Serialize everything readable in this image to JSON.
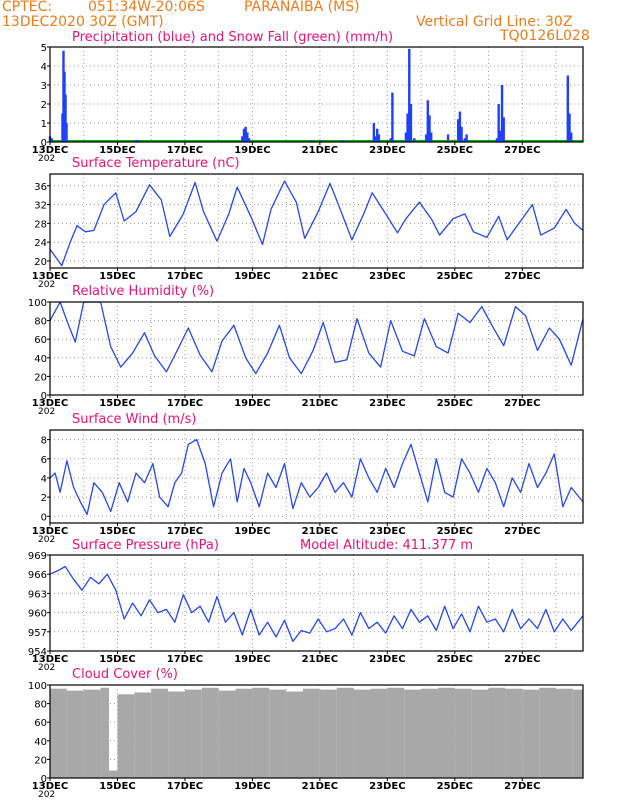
{
  "header": {
    "source": "CPTEC:",
    "coords": "051:34W-20:06S",
    "location": "PARANAIBA (MS)",
    "run": "13DEC2020 30Z (GMT)",
    "grid_note": "Vertical Grid Line: 30Z",
    "code": "TQ0126L028"
  },
  "x_axis": {
    "labels": [
      "13DEC",
      "15DEC",
      "17DEC",
      "19DEC",
      "21DEC",
      "23DEC",
      "25DEC",
      "27DEC"
    ],
    "fragment": "202"
  },
  "colors": {
    "precip": "#2040ff",
    "snow": "#00b000",
    "line": "#2848e8",
    "cloud": "#a8a8a8",
    "title": "#e0157a",
    "header": "#e87d1e"
  },
  "chart_data": [
    {
      "type": "bar",
      "title": "Precipitation (blue) and Snow Fall (green) (mm/h)",
      "ylim": [
        0,
        5
      ],
      "yticks": [
        0,
        1,
        2,
        3,
        4,
        5
      ],
      "x_days": [
        0.0,
        0.05,
        0.37,
        0.4,
        0.43,
        0.46,
        0.49,
        2.55,
        2.6,
        5.7,
        5.75,
        5.8,
        5.85,
        5.9,
        7.75,
        8.05,
        8.65,
        9.6,
        9.65,
        9.7,
        9.75,
        10.1,
        10.15,
        10.55,
        10.6,
        10.65,
        10.7,
        10.8,
        11.15,
        11.2,
        11.25,
        11.3,
        11.8,
        12.1,
        12.15,
        12.2,
        12.3,
        12.35,
        13.25,
        13.3,
        13.35,
        13.4,
        13.45,
        15.35,
        15.4,
        15.45
      ],
      "values": [
        0.3,
        0.2,
        1.5,
        4.8,
        3.7,
        2.5,
        1.0,
        0.1,
        0.1,
        0.3,
        0.7,
        0.8,
        0.5,
        0.2,
        0.1,
        0.1,
        0.1,
        1.0,
        0.3,
        0.7,
        0.4,
        0.2,
        2.6,
        0.5,
        1.5,
        4.9,
        2.0,
        0.2,
        0.4,
        2.2,
        1.4,
        0.5,
        0.4,
        1.2,
        1.6,
        0.8,
        0.2,
        0.4,
        0.2,
        2.0,
        0.6,
        3.0,
        1.3,
        3.5,
        1.5,
        0.5
      ]
    },
    {
      "type": "line",
      "title": "Surface Temperature (nC)",
      "ylim": [
        18.5,
        38.5
      ],
      "yticks": [
        20,
        24,
        28,
        32,
        36
      ],
      "x_days": [
        0.0,
        0.35,
        0.6,
        0.8,
        1.05,
        1.3,
        1.6,
        1.95,
        2.2,
        2.55,
        2.95,
        3.3,
        3.55,
        3.95,
        4.3,
        4.55,
        4.95,
        5.3,
        5.55,
        5.95,
        6.3,
        6.55,
        6.95,
        7.3,
        7.55,
        7.95,
        8.3,
        8.55,
        8.95,
        9.3,
        9.55,
        9.95,
        10.3,
        10.55,
        10.95,
        11.3,
        11.55,
        11.95,
        12.3,
        12.55,
        12.95,
        13.3,
        13.55,
        13.95,
        14.3,
        14.55,
        14.95,
        15.3,
        15.55,
        15.8
      ],
      "values": [
        22.5,
        19,
        24,
        27.5,
        26.2,
        26.5,
        32,
        34.5,
        28.5,
        30.5,
        36.2,
        33,
        25.2,
        30,
        36.7,
        30.5,
        24.2,
        30,
        35.7,
        29.5,
        23.5,
        31,
        37,
        32.5,
        24.8,
        30.5,
        36.5,
        32,
        24.5,
        30,
        34.5,
        30,
        26,
        29,
        32.5,
        29,
        25.5,
        29,
        30,
        26.2,
        25,
        29.5,
        24.5,
        28.5,
        32,
        25.5,
        27,
        31,
        28,
        26.5
      ]
    },
    {
      "type": "line",
      "title": "Relative Humidity (%)",
      "ylim": [
        0,
        100
      ],
      "yticks": [
        0,
        20,
        40,
        60,
        80,
        100
      ],
      "x_days": [
        0.0,
        0.3,
        0.55,
        0.75,
        1.0,
        1.2,
        1.5,
        1.8,
        2.1,
        2.45,
        2.8,
        3.1,
        3.45,
        3.8,
        4.1,
        4.45,
        4.8,
        5.1,
        5.45,
        5.8,
        6.1,
        6.45,
        6.8,
        7.1,
        7.45,
        7.8,
        8.1,
        8.45,
        8.8,
        9.1,
        9.45,
        9.8,
        10.1,
        10.45,
        10.8,
        11.1,
        11.45,
        11.8,
        12.1,
        12.45,
        12.8,
        13.1,
        13.45,
        13.8,
        14.1,
        14.45,
        14.8,
        15.1,
        15.45,
        15.8
      ],
      "values": [
        80,
        100,
        75,
        57,
        100,
        100,
        100,
        52,
        30,
        45,
        67,
        42,
        25,
        50,
        72,
        43,
        25,
        58,
        75,
        40,
        23,
        45,
        75,
        40,
        23,
        48,
        78,
        35,
        38,
        82,
        45,
        30,
        80,
        47,
        42,
        82,
        52,
        45,
        88,
        78,
        95,
        75,
        53,
        95,
        85,
        48,
        72,
        60,
        32,
        82
      ]
    },
    {
      "type": "line",
      "title": "Surface Wind (m/s)",
      "ylim": [
        -0.7,
        9
      ],
      "yticks": [
        0,
        2,
        4,
        6,
        8
      ],
      "x_days": [
        0.0,
        0.15,
        0.3,
        0.5,
        0.7,
        0.9,
        1.1,
        1.3,
        1.55,
        1.8,
        2.05,
        2.3,
        2.55,
        2.8,
        3.05,
        3.25,
        3.5,
        3.7,
        3.9,
        4.1,
        4.35,
        4.6,
        4.85,
        5.1,
        5.35,
        5.55,
        5.75,
        5.95,
        6.2,
        6.45,
        6.7,
        6.95,
        7.2,
        7.45,
        7.7,
        7.95,
        8.2,
        8.45,
        8.7,
        8.95,
        9.2,
        9.45,
        9.7,
        9.95,
        10.2,
        10.45,
        10.7,
        10.95,
        11.2,
        11.45,
        11.7,
        11.95,
        12.2,
        12.45,
        12.7,
        12.95,
        13.2,
        13.45,
        13.7,
        13.95,
        14.2,
        14.45,
        14.7,
        14.95,
        15.2,
        15.45,
        15.8
      ],
      "values": [
        4,
        4.5,
        2.5,
        5.8,
        3,
        1.5,
        0.2,
        3.5,
        2.5,
        0.5,
        3.5,
        1.5,
        4.5,
        3.5,
        5.5,
        2,
        1,
        3.5,
        4.5,
        7.5,
        8,
        5.5,
        1,
        4.5,
        6,
        1.5,
        5,
        3.5,
        1,
        4.5,
        3,
        5.5,
        0.8,
        3.5,
        2,
        3,
        4.5,
        2.5,
        3.5,
        2,
        6,
        4,
        2.5,
        5,
        3,
        5.5,
        7.5,
        4.5,
        1.5,
        6,
        2.5,
        2,
        6,
        4.5,
        2.5,
        5,
        3.5,
        1,
        4,
        2.5,
        5.5,
        3,
        4.5,
        6.5,
        1,
        3,
        1.5
      ]
    },
    {
      "type": "line",
      "title": "Surface Pressure (hPa)",
      "annotation": "Model Altitude: 411.377 m",
      "ylim": [
        954,
        969
      ],
      "yticks": [
        954,
        957,
        960,
        963,
        966,
        969
      ],
      "x_days": [
        0.0,
        0.25,
        0.45,
        0.7,
        0.95,
        1.2,
        1.45,
        1.7,
        1.95,
        2.2,
        2.45,
        2.7,
        2.95,
        3.2,
        3.45,
        3.7,
        3.95,
        4.2,
        4.45,
        4.7,
        4.95,
        5.2,
        5.45,
        5.7,
        5.95,
        6.2,
        6.45,
        6.7,
        6.95,
        7.2,
        7.45,
        7.7,
        7.95,
        8.2,
        8.45,
        8.7,
        8.95,
        9.2,
        9.45,
        9.7,
        9.95,
        10.2,
        10.45,
        10.7,
        10.95,
        11.2,
        11.45,
        11.7,
        11.95,
        12.2,
        12.45,
        12.7,
        12.95,
        13.2,
        13.45,
        13.7,
        13.95,
        14.2,
        14.45,
        14.7,
        14.95,
        15.2,
        15.45,
        15.8
      ],
      "values": [
        966,
        966.6,
        967.2,
        965.2,
        963.5,
        965.5,
        964.5,
        966,
        963.5,
        959,
        961.5,
        959.5,
        962,
        960,
        960.5,
        958.5,
        962.8,
        960,
        961,
        958.5,
        962.5,
        958.5,
        960,
        956.5,
        960.5,
        956.5,
        958.5,
        956.2,
        958.8,
        955.5,
        957.2,
        956.8,
        959,
        957,
        957.5,
        959,
        956.5,
        960,
        957.5,
        958.5,
        956.8,
        959.5,
        957.5,
        960.5,
        958.5,
        959.5,
        957.2,
        961,
        957.5,
        959.8,
        957,
        961,
        958.5,
        959,
        957,
        960.5,
        957.5,
        959,
        957.5,
        960.5,
        957,
        959,
        957.2,
        959.5
      ]
    },
    {
      "type": "bar",
      "title": "Cloud Cover (%)",
      "ylim": [
        0,
        100
      ],
      "yticks": [
        0,
        20,
        40,
        60,
        80,
        100
      ],
      "x_days": [
        0.0,
        0.5,
        1.0,
        1.5,
        1.75,
        2.0,
        2.5,
        3.0,
        3.5,
        4.0,
        4.5,
        5.0,
        5.5,
        6.0,
        6.5,
        7.0,
        7.5,
        8.0,
        8.5,
        9.0,
        9.5,
        10.0,
        10.5,
        11.0,
        11.5,
        12.0,
        12.5,
        13.0,
        13.5,
        14.0,
        14.5,
        15.0,
        15.5
      ],
      "values": [
        96,
        94,
        95,
        97,
        8,
        90,
        92,
        96,
        93,
        95,
        97,
        94,
        96,
        97,
        95,
        93,
        96,
        95,
        97,
        95,
        96,
        97,
        95,
        96,
        97,
        96,
        95,
        97,
        96,
        95,
        97,
        96,
        95
      ]
    }
  ]
}
